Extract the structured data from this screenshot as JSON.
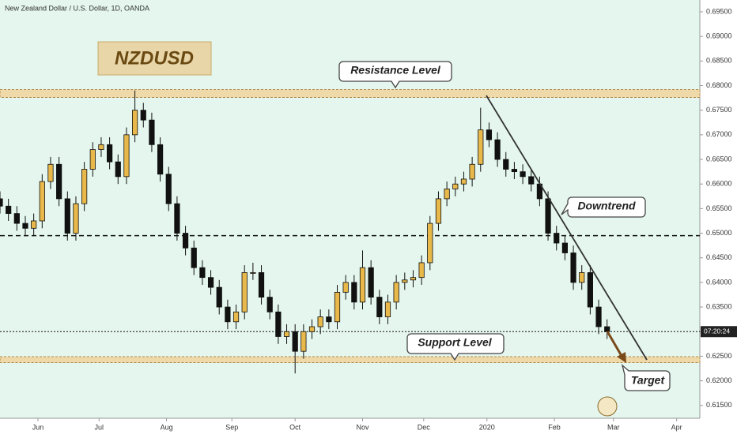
{
  "chart_data": {
    "type": "candlestick",
    "title": "New Zealand Dollar / U.S. Dollar, 1D, OANDA",
    "symbol_label": "NZDUSD",
    "annotations": {
      "resistance": "Resistance Level",
      "downtrend": "Downtrend",
      "support": "Support Level",
      "target": "Target"
    },
    "countdown_label": "07:20:24",
    "xlim": [
      0,
      332
    ],
    "xticks": [
      {
        "value": 18,
        "label": "Jun"
      },
      {
        "value": 47,
        "label": "Jul"
      },
      {
        "value": 79,
        "label": "Aug"
      },
      {
        "value": 110,
        "label": "Sep"
      },
      {
        "value": 140,
        "label": "Oct"
      },
      {
        "value": 172,
        "label": "Nov"
      },
      {
        "value": 201,
        "label": "Dec"
      },
      {
        "value": 231,
        "label": "2020"
      },
      {
        "value": 263,
        "label": "Feb"
      },
      {
        "value": 291,
        "label": "Mar"
      },
      {
        "value": 321,
        "label": "Apr"
      }
    ],
    "ylim": [
      0.6124,
      0.6974
    ],
    "yticks": [
      {
        "value": 0.615,
        "label": "0.61500"
      },
      {
        "value": 0.62,
        "label": "0.62000"
      },
      {
        "value": 0.625,
        "label": "0.62500"
      },
      {
        "value": 0.63,
        "label": "0.63000"
      },
      {
        "value": 0.635,
        "label": "0.63500"
      },
      {
        "value": 0.64,
        "label": "0.64000"
      },
      {
        "value": 0.645,
        "label": "0.64500"
      },
      {
        "value": 0.65,
        "label": "0.65000"
      },
      {
        "value": 0.655,
        "label": "0.65500"
      },
      {
        "value": 0.66,
        "label": "0.66000"
      },
      {
        "value": 0.665,
        "label": "0.66500"
      },
      {
        "value": 0.67,
        "label": "0.67000"
      },
      {
        "value": 0.675,
        "label": "0.67500"
      },
      {
        "value": 0.68,
        "label": "0.68000"
      },
      {
        "value": 0.685,
        "label": "0.68500"
      },
      {
        "value": 0.69,
        "label": "0.69000"
      },
      {
        "value": 0.695,
        "label": "0.69500"
      }
    ],
    "resistance_band": [
      0.6776,
      0.6792
    ],
    "support_band": [
      0.6237,
      0.6249
    ],
    "pivot_line": 0.6495,
    "last_price": 0.63,
    "up_color": "#e8b84a",
    "down_color": "#111111",
    "x": [
      0,
      4,
      8,
      12,
      16,
      20,
      24,
      28,
      32,
      36,
      40,
      44,
      48,
      52,
      56,
      60,
      64,
      68,
      72,
      76,
      80,
      84,
      88,
      92,
      96,
      100,
      104,
      108,
      112,
      116,
      120,
      124,
      128,
      132,
      136,
      140,
      144,
      148,
      152,
      156,
      160,
      164,
      168,
      172,
      176,
      180,
      184,
      188,
      192,
      196,
      200,
      204,
      208,
      212,
      216,
      220,
      224,
      228,
      232,
      236,
      240,
      244,
      248,
      252,
      256,
      260,
      264,
      268,
      272,
      276,
      280,
      284,
      288
    ],
    "open": [
      0.657,
      0.6555,
      0.654,
      0.652,
      0.651,
      0.6525,
      0.6605,
      0.664,
      0.657,
      0.65,
      0.656,
      0.663,
      0.667,
      0.668,
      0.6645,
      0.6615,
      0.67,
      0.675,
      0.673,
      0.668,
      0.662,
      0.656,
      0.65,
      0.647,
      0.643,
      0.641,
      0.639,
      0.635,
      0.632,
      0.634,
      0.642,
      0.642,
      0.637,
      0.634,
      0.629,
      0.63,
      0.626,
      0.63,
      0.631,
      0.633,
      0.632,
      0.638,
      0.64,
      0.636,
      0.643,
      0.637,
      0.633,
      0.636,
      0.64,
      0.6405,
      0.641,
      0.644,
      0.652,
      0.657,
      0.659,
      0.66,
      0.661,
      0.664,
      0.671,
      0.669,
      0.665,
      0.663,
      0.6625,
      0.6615,
      0.66,
      0.657,
      0.65,
      0.648,
      0.646,
      0.64,
      0.642,
      0.635,
      0.631
    ],
    "high": [
      0.6585,
      0.657,
      0.6555,
      0.6535,
      0.654,
      0.662,
      0.6655,
      0.6655,
      0.6585,
      0.6575,
      0.6645,
      0.6685,
      0.6695,
      0.6695,
      0.666,
      0.6715,
      0.679,
      0.6765,
      0.6745,
      0.6695,
      0.6635,
      0.6575,
      0.6515,
      0.6485,
      0.6445,
      0.6425,
      0.6405,
      0.6365,
      0.6355,
      0.6435,
      0.644,
      0.6435,
      0.6385,
      0.6355,
      0.6315,
      0.6315,
      0.6315,
      0.6325,
      0.6345,
      0.6345,
      0.6395,
      0.6415,
      0.6415,
      0.6465,
      0.6445,
      0.6385,
      0.6375,
      0.6415,
      0.642,
      0.6425,
      0.6455,
      0.6535,
      0.6585,
      0.6605,
      0.6615,
      0.6625,
      0.6655,
      0.6755,
      0.6725,
      0.6705,
      0.6665,
      0.6645,
      0.664,
      0.663,
      0.6615,
      0.6585,
      0.6515,
      0.6495,
      0.6475,
      0.6435,
      0.6435,
      0.6365,
      0.6325
    ],
    "low": [
      0.654,
      0.6525,
      0.6505,
      0.6495,
      0.6495,
      0.651,
      0.659,
      0.6555,
      0.6485,
      0.6485,
      0.6545,
      0.6615,
      0.6655,
      0.663,
      0.66,
      0.66,
      0.6685,
      0.6715,
      0.6665,
      0.6605,
      0.6545,
      0.6485,
      0.6455,
      0.6415,
      0.6395,
      0.6375,
      0.6335,
      0.6305,
      0.6305,
      0.6325,
      0.6405,
      0.6355,
      0.6325,
      0.6275,
      0.6275,
      0.6215,
      0.6245,
      0.6285,
      0.6295,
      0.6305,
      0.6305,
      0.6365,
      0.6345,
      0.6345,
      0.6355,
      0.6315,
      0.6315,
      0.6345,
      0.6385,
      0.639,
      0.6395,
      0.6425,
      0.6505,
      0.6555,
      0.6575,
      0.6585,
      0.6595,
      0.6625,
      0.6675,
      0.6635,
      0.6615,
      0.661,
      0.66,
      0.6585,
      0.6555,
      0.6485,
      0.6465,
      0.6445,
      0.6385,
      0.6385,
      0.6335,
      0.6295,
      0.6285
    ],
    "close": [
      0.6555,
      0.654,
      0.652,
      0.651,
      0.6525,
      0.6605,
      0.664,
      0.657,
      0.65,
      0.656,
      0.663,
      0.667,
      0.668,
      0.6645,
      0.6615,
      0.67,
      0.675,
      0.673,
      0.668,
      0.662,
      0.656,
      0.65,
      0.647,
      0.643,
      0.641,
      0.639,
      0.635,
      0.632,
      0.634,
      0.642,
      0.642,
      0.637,
      0.634,
      0.629,
      0.63,
      0.626,
      0.63,
      0.631,
      0.633,
      0.632,
      0.638,
      0.64,
      0.636,
      0.643,
      0.637,
      0.633,
      0.636,
      0.64,
      0.6405,
      0.641,
      0.644,
      0.652,
      0.657,
      0.659,
      0.66,
      0.661,
      0.664,
      0.671,
      0.669,
      0.665,
      0.663,
      0.6625,
      0.6615,
      0.66,
      0.657,
      0.65,
      0.648,
      0.646,
      0.64,
      0.642,
      0.635,
      0.631,
      0.63
    ]
  }
}
